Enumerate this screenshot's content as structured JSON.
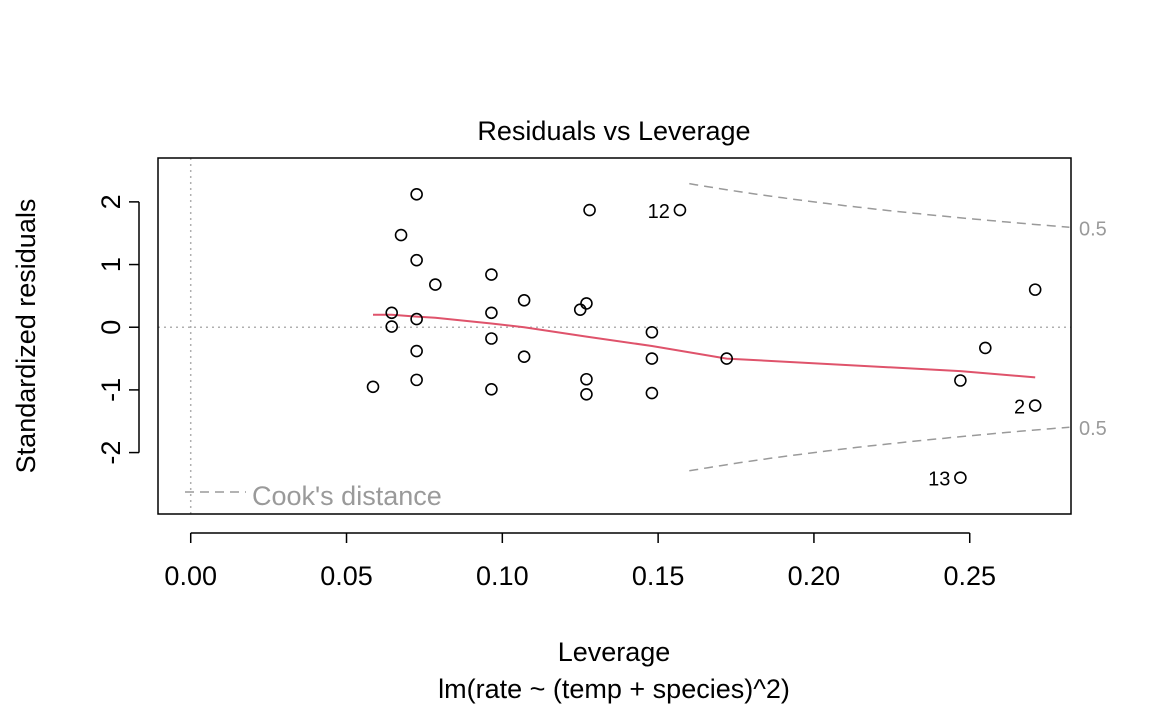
{
  "chart_data": {
    "type": "scatter",
    "title": "Residuals vs Leverage",
    "xlabel": "Leverage",
    "ylabel": "Standardized residuals",
    "subtitle": "lm(rate ~ (temp + species)^2)",
    "xlim": [
      -0.0105,
      0.2825
    ],
    "ylim": [
      -2.98,
      2.7
    ],
    "x_ticks": [
      0.0,
      0.05,
      0.1,
      0.15,
      0.2,
      0.25
    ],
    "x_tick_labels": [
      "0.00",
      "0.05",
      "0.10",
      "0.15",
      "0.20",
      "0.25"
    ],
    "y_ticks": [
      -2,
      -1,
      0,
      1,
      2
    ],
    "y_tick_labels": [
      "-2",
      "-1",
      "0",
      "1",
      "2"
    ],
    "points": [
      {
        "x": 0.0585,
        "y": -0.95
      },
      {
        "x": 0.0645,
        "y": 0.23
      },
      {
        "x": 0.0645,
        "y": 0.01
      },
      {
        "x": 0.0675,
        "y": 1.47
      },
      {
        "x": 0.0725,
        "y": 2.12
      },
      {
        "x": 0.0725,
        "y": 1.07
      },
      {
        "x": 0.0725,
        "y": 0.13
      },
      {
        "x": 0.0725,
        "y": -0.38
      },
      {
        "x": 0.0725,
        "y": -0.84
      },
      {
        "x": 0.0785,
        "y": 0.68
      },
      {
        "x": 0.0965,
        "y": 0.84
      },
      {
        "x": 0.0965,
        "y": 0.23
      },
      {
        "x": 0.0965,
        "y": -0.18
      },
      {
        "x": 0.0965,
        "y": -0.99
      },
      {
        "x": 0.107,
        "y": 0.43
      },
      {
        "x": 0.107,
        "y": -0.47
      },
      {
        "x": 0.125,
        "y": 0.28
      },
      {
        "x": 0.127,
        "y": 0.38
      },
      {
        "x": 0.127,
        "y": -0.83
      },
      {
        "x": 0.127,
        "y": -1.07
      },
      {
        "x": 0.128,
        "y": 1.87
      },
      {
        "x": 0.148,
        "y": -0.08
      },
      {
        "x": 0.148,
        "y": -0.5
      },
      {
        "x": 0.148,
        "y": -1.05
      },
      {
        "x": 0.157,
        "y": 1.87,
        "label": "12"
      },
      {
        "x": 0.172,
        "y": -0.5
      },
      {
        "x": 0.247,
        "y": -0.85
      },
      {
        "x": 0.247,
        "y": -2.4,
        "label": "13"
      },
      {
        "x": 0.255,
        "y": -0.33
      },
      {
        "x": 0.271,
        "y": 0.6
      },
      {
        "x": 0.271,
        "y": -1.25,
        "label": "2"
      }
    ],
    "smooth_line": {
      "color": "#DF536B",
      "x": [
        0.0585,
        0.0645,
        0.0725,
        0.0785,
        0.0965,
        0.107,
        0.127,
        0.148,
        0.172,
        0.247,
        0.271
      ],
      "y": [
        0.2,
        0.2,
        0.17,
        0.15,
        0.06,
        0.0,
        -0.15,
        -0.3,
        -0.5,
        -0.7,
        -0.8
      ]
    },
    "reference_lines": [
      {
        "axis": "y",
        "value": 0,
        "style": "dotted"
      },
      {
        "axis": "x",
        "value": 0,
        "style": "dotted"
      }
    ],
    "cooks_distance": {
      "legend_label": "Cook's distance",
      "contour_label": "0.5",
      "level": 0.5,
      "color": "#9a9a9a"
    },
    "legend_position": "bottom-left",
    "grid": false
  }
}
